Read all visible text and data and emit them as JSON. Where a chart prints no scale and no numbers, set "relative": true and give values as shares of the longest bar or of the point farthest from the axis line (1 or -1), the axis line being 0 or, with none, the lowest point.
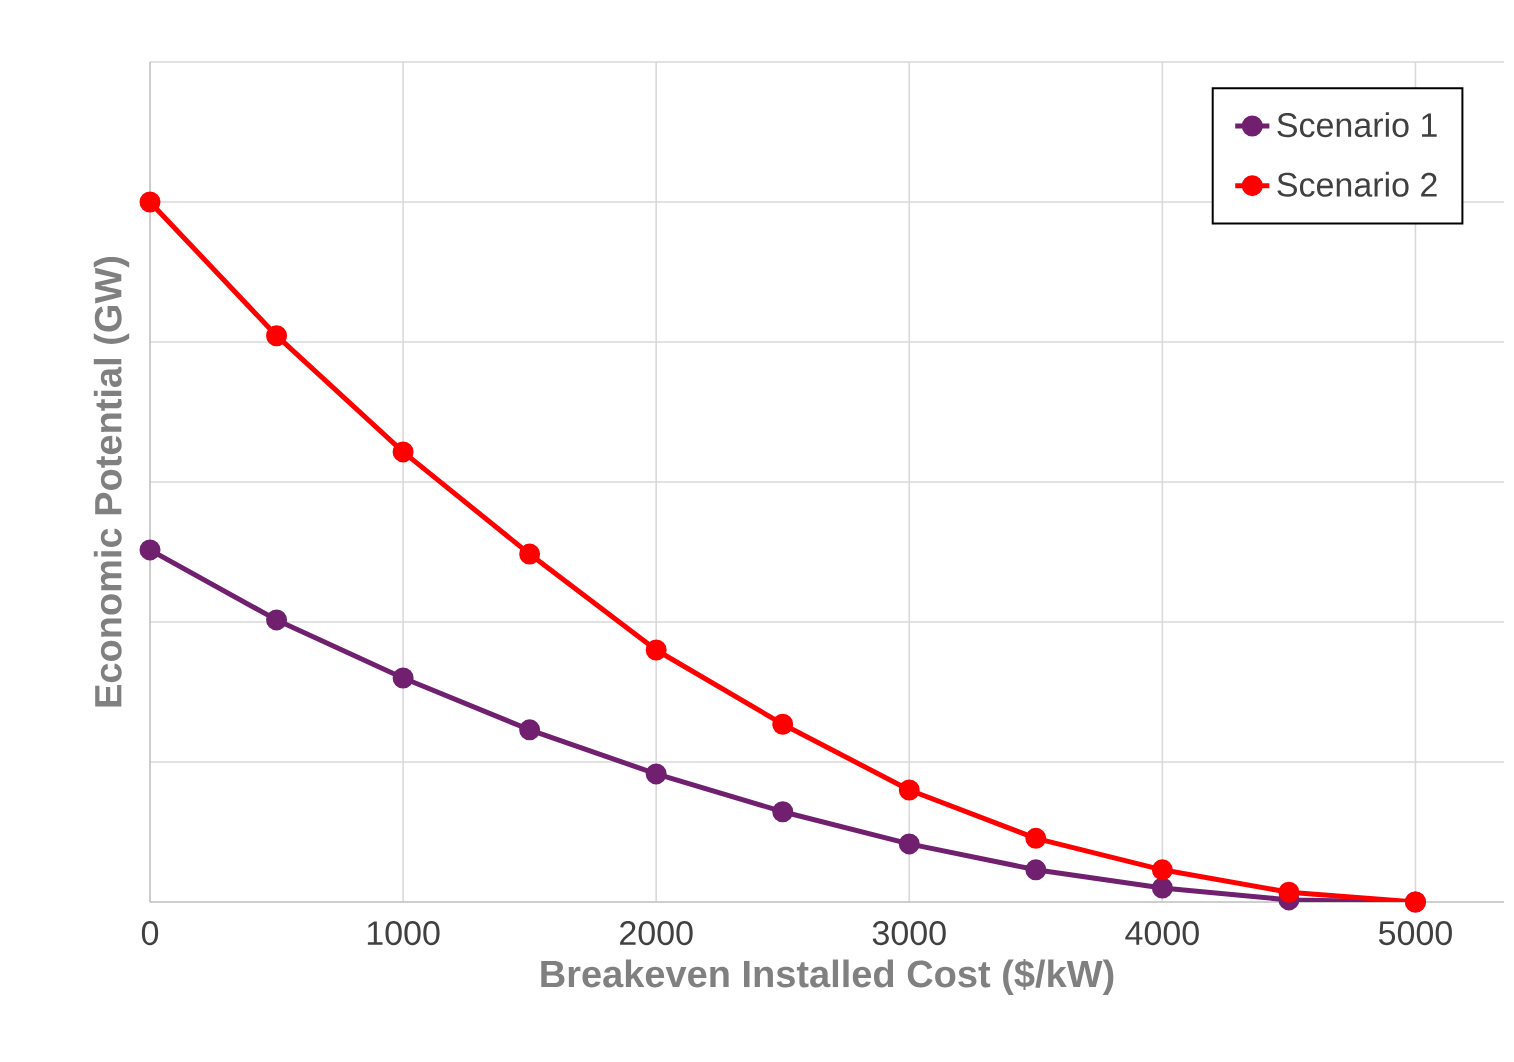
{
  "chart_data": {
    "type": "line",
    "relative": true,
    "xlabel": "Breakeven Installed Cost ($/kW)",
    "ylabel": "Economic Potential (GW)",
    "x": [
      0,
      500,
      1000,
      1500,
      2000,
      2500,
      3000,
      3500,
      4000,
      4500,
      5000
    ],
    "xlim": [
      0,
      5350
    ],
    "xticks": [
      0,
      1000,
      2000,
      3000,
      4000,
      5000
    ],
    "series": [
      {
        "name": "Scenario 1",
        "color": "#70206f",
        "values": [
          0.503,
          0.403,
          0.32,
          0.246,
          0.183,
          0.129,
          0.083,
          0.046,
          0.02,
          0.003,
          0
        ]
      },
      {
        "name": "Scenario 2",
        "color": "#ff0000",
        "values": [
          1,
          0.809,
          0.643,
          0.497,
          0.36,
          0.254,
          0.16,
          0.091,
          0.046,
          0.014,
          0
        ]
      }
    ],
    "grid": true,
    "legend": "top right",
    "marker": "circle",
    "line_style": "solid"
  }
}
